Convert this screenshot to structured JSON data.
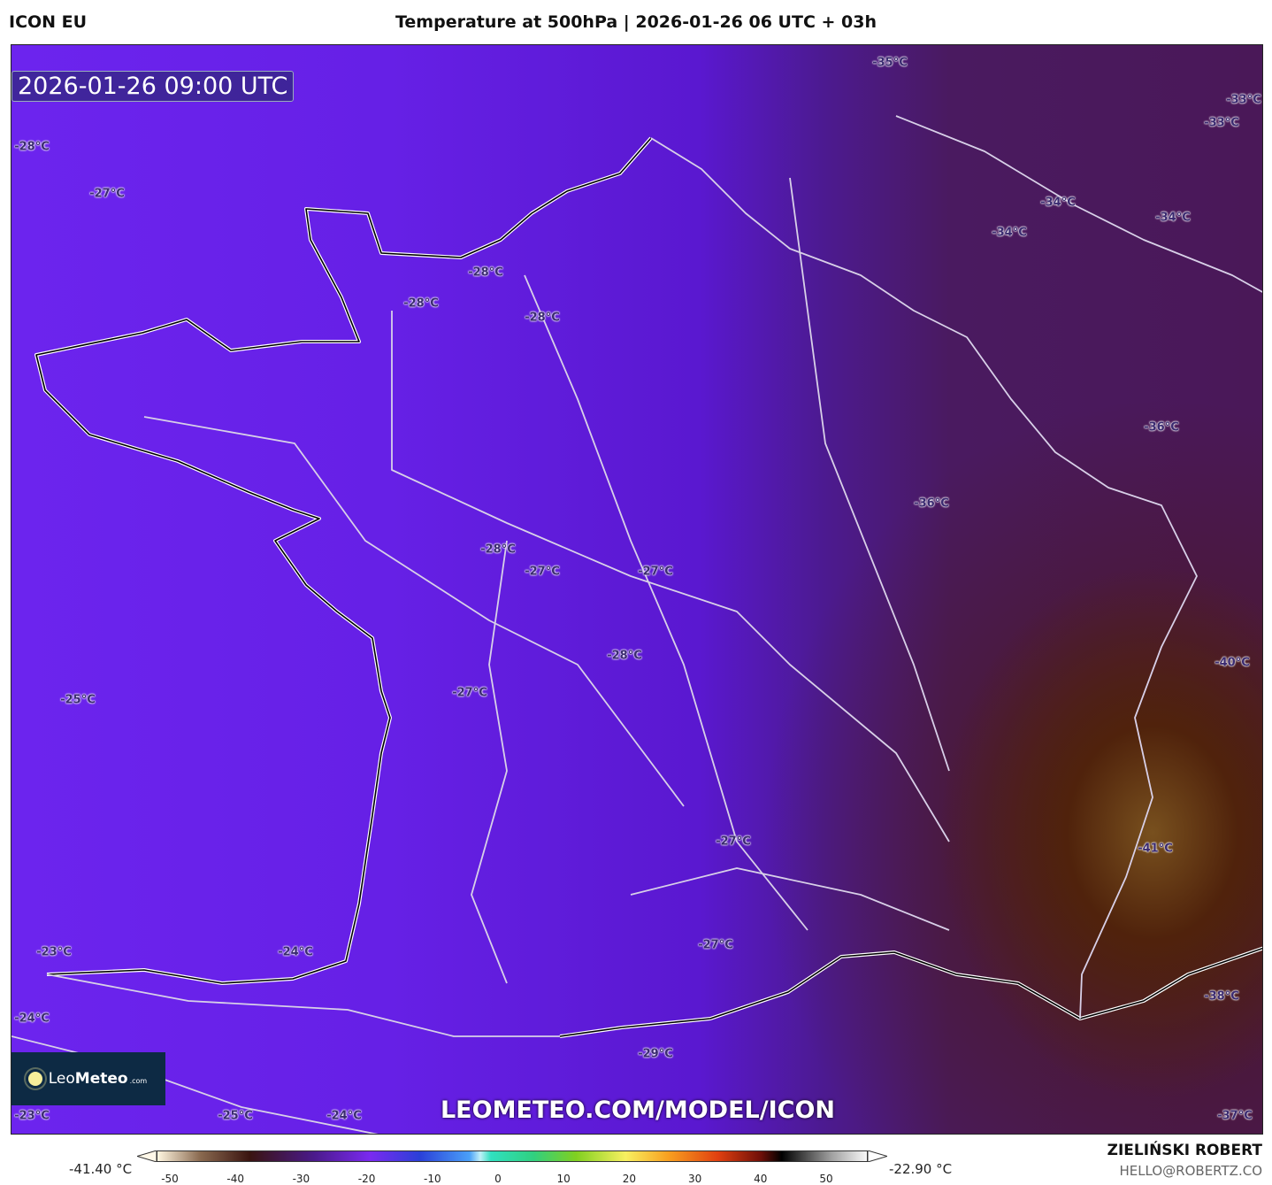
{
  "header": {
    "model": "ICON EU",
    "title": "Temperature at 500hPa | 2026-01-26 06 UTC + 03h"
  },
  "map": {
    "valid_time": "2026-01-26 09:00 UTC",
    "labels": [
      "-35°C",
      "-33°C",
      "-33°C",
      "-28°C",
      "-27°C",
      "-34°C",
      "-34°C",
      "-34°C",
      "-28°C",
      "-28°C",
      "-28°C",
      "-36°C",
      "-36°C",
      "-28°C",
      "-27°C",
      "-27°C",
      "-40°C",
      "-28°C",
      "-25°C",
      "-27°C",
      "-27°C",
      "-41°C",
      "-23°C",
      "-24°C",
      "-27°C",
      "-38°C",
      "-24°C",
      "-29°C",
      "-23°C",
      "-25°C",
      "-24°C",
      "-37°C"
    ],
    "watermark": "LEOMETEO.COM/MODEL/ICON",
    "logo": {
      "part1": "Leo",
      "part2": "Meteo",
      ".com": ".com"
    }
  },
  "colorbar": {
    "min_label": "-41.40 °C",
    "max_label": "-22.90 °C",
    "ticks": [
      "-50",
      "-40",
      "-30",
      "-20",
      "-10",
      "0",
      "10",
      "20",
      "30",
      "40",
      "50"
    ]
  },
  "footer": {
    "author": "ZIELIŃSKI ROBERT",
    "email": "HELLO@ROBERTZ.CO"
  }
}
